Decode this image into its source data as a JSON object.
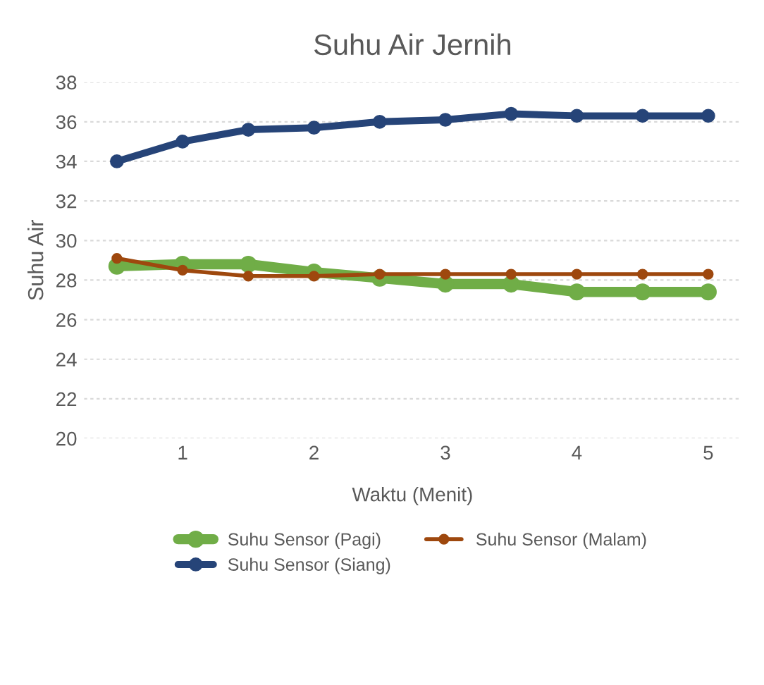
{
  "chart_data": {
    "type": "line",
    "title": "Suhu Air Jernih",
    "xlabel": "Waktu (Menit)",
    "ylabel": "Suhu Air",
    "x": [
      0.5,
      1,
      1.5,
      2,
      2.5,
      3,
      3.5,
      4,
      4.5,
      5
    ],
    "series": [
      {
        "name": "Suhu Sensor (Pagi)",
        "color": "#70ad47",
        "values": [
          28.7,
          28.8,
          28.8,
          28.4,
          28.1,
          27.8,
          27.8,
          27.4,
          27.4,
          27.4
        ]
      },
      {
        "name": "Suhu Sensor (Siang)",
        "color": "#264478",
        "values": [
          34.0,
          35.0,
          35.6,
          35.7,
          36.0,
          36.1,
          36.4,
          36.3,
          36.3,
          36.3
        ]
      },
      {
        "name": "Suhu Sensor (Malam)",
        "color": "#9e480e",
        "values": [
          29.1,
          28.5,
          28.2,
          28.2,
          28.3,
          28.3,
          28.3,
          28.3,
          28.3,
          28.3
        ]
      }
    ],
    "xlim": [
      0.25,
      5.25
    ],
    "xticks": [
      1,
      2,
      3,
      4,
      5
    ],
    "ylim": [
      20,
      38
    ],
    "yticks": [
      20,
      22,
      24,
      26,
      28,
      30,
      32,
      34,
      36,
      38
    ],
    "grid": "y",
    "legend": "bottom",
    "marker": "circle",
    "line_style": "solid"
  }
}
